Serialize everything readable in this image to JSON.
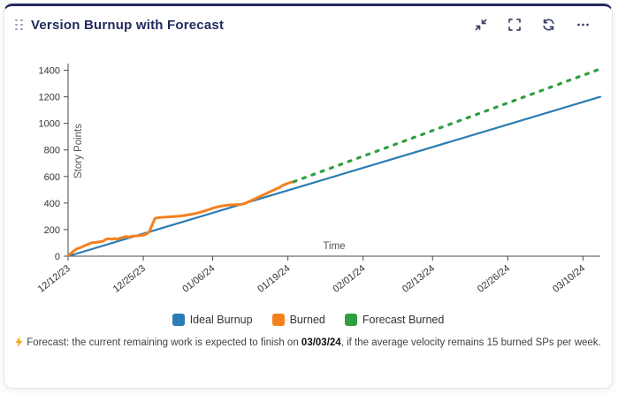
{
  "card": {
    "title": "Version Burnup with Forecast",
    "accent_color": "#232a5c"
  },
  "toolbar": {
    "icons": [
      "collapse-icon",
      "fullscreen-icon",
      "refresh-icon",
      "more-icon"
    ]
  },
  "chart_data": {
    "type": "line",
    "xlabel": "Time",
    "ylabel": "Story Points",
    "x_domain": [
      0,
      92
    ],
    "y_max": 1450,
    "y_ticks": [
      0,
      200,
      400,
      600,
      800,
      1000,
      1200,
      1400
    ],
    "x_ticks": [
      0,
      13,
      25,
      38,
      51,
      63,
      76,
      89
    ],
    "x_tick_labels": [
      "12/12/23",
      "12/25/23",
      "01/06/24",
      "01/19/24",
      "02/01/24",
      "02/13/24",
      "02/26/24",
      "03/10/24"
    ],
    "grid": false,
    "legend_position": "bottom",
    "series": [
      {
        "name": "Ideal Burnup",
        "color": "#2b7cb3",
        "width": 2.2,
        "dash": "",
        "points": [
          [
            0,
            0
          ],
          [
            92,
            1200
          ]
        ]
      },
      {
        "name": "Burned",
        "color": "#f5801e",
        "width": 3,
        "dash": "",
        "points": [
          [
            0,
            5
          ],
          [
            0.5,
            22
          ],
          [
            1,
            40
          ],
          [
            1.5,
            55
          ],
          [
            2,
            62
          ],
          [
            3,
            82
          ],
          [
            4,
            100
          ],
          [
            5,
            106
          ],
          [
            6,
            112
          ],
          [
            6.5,
            126
          ],
          [
            7,
            132
          ],
          [
            7.6,
            128
          ],
          [
            8,
            133
          ],
          [
            8.4,
            128
          ],
          [
            9,
            136
          ],
          [
            10,
            148
          ],
          [
            10.5,
            144
          ],
          [
            11,
            150
          ],
          [
            12,
            153
          ],
          [
            13,
            158
          ],
          [
            13.5,
            166
          ],
          [
            14,
            182
          ],
          [
            14.5,
            232
          ],
          [
            15,
            285
          ],
          [
            15.5,
            290
          ],
          [
            16,
            292
          ],
          [
            17,
            295
          ],
          [
            18,
            298
          ],
          [
            19,
            301
          ],
          [
            20,
            306
          ],
          [
            21,
            313
          ],
          [
            22,
            321
          ],
          [
            23,
            333
          ],
          [
            24,
            346
          ],
          [
            25,
            361
          ],
          [
            26,
            373
          ],
          [
            27,
            381
          ],
          [
            28,
            386
          ],
          [
            29,
            388
          ],
          [
            30,
            391
          ],
          [
            30.5,
            396
          ],
          [
            31,
            406
          ],
          [
            32,
            426
          ],
          [
            33,
            446
          ],
          [
            34,
            466
          ],
          [
            35,
            487
          ],
          [
            36,
            507
          ],
          [
            36.5,
            516
          ],
          [
            37,
            531
          ],
          [
            37.5,
            541
          ],
          [
            38,
            549
          ],
          [
            38.5,
            556
          ],
          [
            39,
            561
          ]
        ]
      },
      {
        "name": "Forecast Burned",
        "color": "#2f9e41",
        "width": 3.2,
        "dash": "3 8",
        "points": [
          [
            39,
            561
          ],
          [
            92,
            1410
          ]
        ]
      }
    ]
  },
  "footer": {
    "text_before": "Forecast: the current remaining work is expected to finish on ",
    "date": "03/03/24",
    "text_after": ", if the average velocity remains 15 burned SPs per week."
  }
}
